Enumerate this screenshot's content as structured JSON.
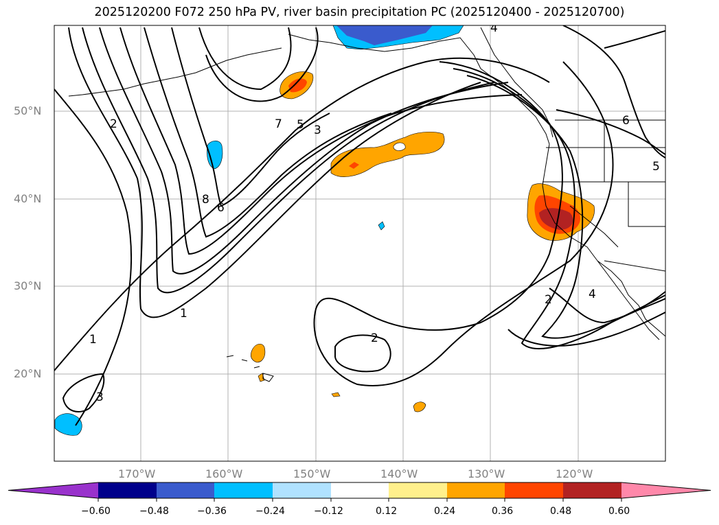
{
  "title": "2025120200 F072 250 hPa PV, river basin precipitation PC (2025120400 - 2025120700)",
  "map": {
    "lat_labels": [
      "50°N",
      "40°N",
      "30°N",
      "20°N"
    ],
    "lon_labels": [
      "170°W",
      "160°W",
      "150°W",
      "140°W",
      "130°W",
      "120°W"
    ],
    "contour_labels": [
      "2",
      "7",
      "5",
      "3",
      "8",
      "6",
      "1",
      "1",
      "3",
      "2",
      "2",
      "4",
      "6",
      "5",
      "4"
    ],
    "pv_contour_levels": [
      1,
      2,
      3,
      4,
      5,
      6,
      7,
      8
    ]
  },
  "colorbar": {
    "ticks": [
      "−0.60",
      "−0.48",
      "−0.36",
      "−0.24",
      "−0.12",
      "0.12",
      "0.24",
      "0.36",
      "0.48",
      "0.60"
    ],
    "colors": [
      "#9932cc",
      "#00008b",
      "#3a5bcd",
      "#00bfff",
      "#b0e2ff",
      "#ffffff",
      "#fff08c",
      "#ffa500",
      "#ff4500",
      "#b22222",
      "#ff88aa"
    ]
  }
}
